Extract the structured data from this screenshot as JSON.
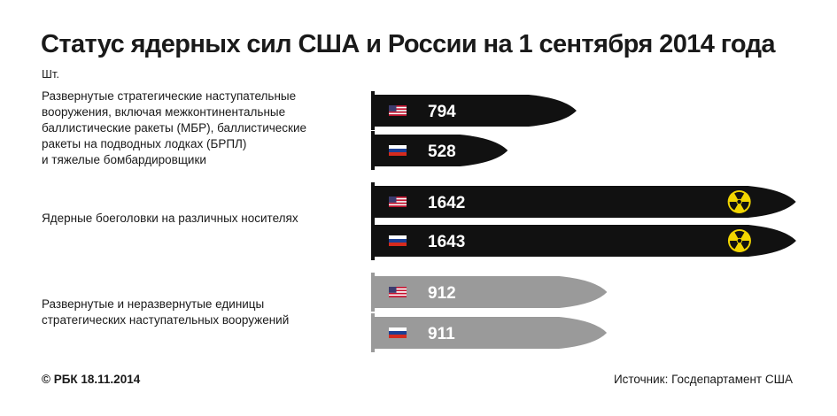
{
  "chart_data": {
    "type": "bar",
    "title": "Статус ядерных сил США и России на 1 сентября 2014 года",
    "unit": "Шт.",
    "categories": [
      "Развернутые стратегические наступательные вооружения, включая межконтинентальные баллистические ракеты (МБР), баллистические ракеты на подводных лодках (БРПЛ) и тяжелые бомбардировщики",
      "Ядерные боеголовки на различных носителях",
      "Развернутые и неразвернутые единицы стратегических наступательных вооружений"
    ],
    "category_label_lines": [
      [
        "Развернутые стратегические наступательные",
        "вооружения, включая межконтинентальные",
        "баллистические ракеты (МБР), баллистические",
        "ракеты на подводных лодках (БРПЛ)",
        "и тяжелые бомбардировщики"
      ],
      [
        "Ядерные боеголовки на различных носителях"
      ],
      [
        "Развернутые и неразвернутые единицы",
        "стратегических наступательных вооружений"
      ]
    ],
    "series": [
      {
        "country": "США",
        "flag": "us-flag",
        "values": [
          794,
          1642,
          912
        ]
      },
      {
        "country": "Россия",
        "flag": "russia-flag",
        "values": [
          528,
          1643,
          911
        ]
      }
    ],
    "colors": {
      "deployed": "#111111",
      "warheads": "#111111",
      "total": "#9a9a9a",
      "radiation": "#f2d600"
    },
    "bar_shape": "missile",
    "legend": "none"
  },
  "footer": {
    "copyright": "© РБК 18.11.2014",
    "source": "Источник: Госдепартамент США"
  }
}
